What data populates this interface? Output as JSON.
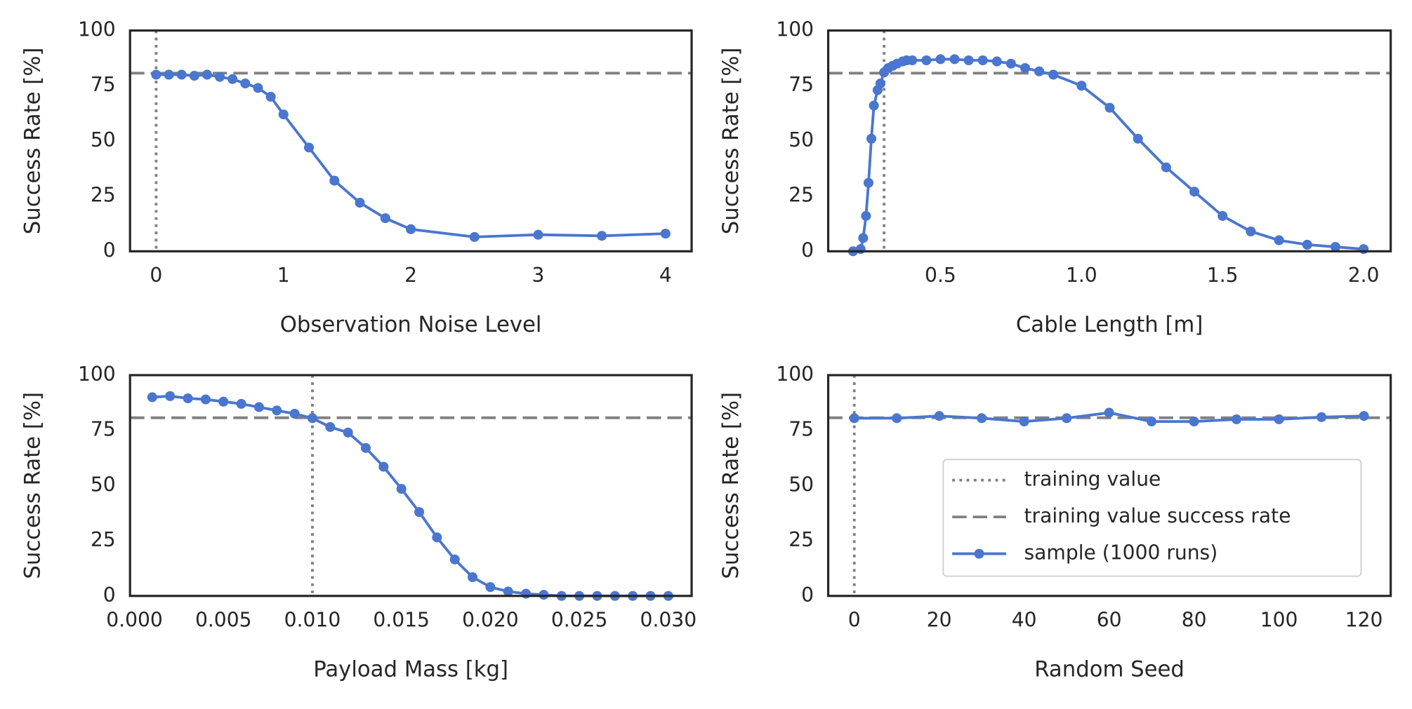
{
  "chart_data": [
    {
      "type": "line",
      "xlabel": "Observation Noise Level",
      "ylabel": "Success Rate [%]",
      "xlim": [
        -0.205,
        4.205
      ],
      "ylim": [
        0,
        100
      ],
      "xticks": [
        0,
        1,
        2,
        3,
        4
      ],
      "yticks": [
        0,
        25,
        50,
        75,
        100
      ],
      "x": [
        0,
        0.1,
        0.2,
        0.3,
        0.4,
        0.5,
        0.6,
        0.7,
        0.8,
        0.9,
        1.0,
        1.2,
        1.4,
        1.6,
        1.8,
        2.0,
        2.5,
        3.0,
        3.5,
        4.0
      ],
      "series": [
        {
          "color": "#4a76cf",
          "values": [
            80,
            80,
            80,
            79.5,
            80,
            79,
            78,
            76,
            74,
            70,
            62,
            47,
            32,
            22,
            15,
            10,
            6.5,
            7.5,
            7,
            8
          ]
        }
      ],
      "training_value": 0,
      "training_success_rate": 80.7,
      "reference_color": "#808080"
    },
    {
      "type": "line",
      "xlabel": "Cable Length [m]",
      "ylabel": "Success Rate [%]",
      "xlim": [
        0.102,
        2.096
      ],
      "ylim": [
        0,
        100
      ],
      "xticks": [
        {
          "value": 0.5,
          "label": "0.5"
        },
        {
          "value": 1,
          "label": "1.0"
        },
        {
          "value": 1.5,
          "label": "1.5"
        },
        {
          "value": 2,
          "label": "2.0"
        }
      ],
      "yticks": [
        0,
        25,
        50,
        75,
        100
      ],
      "x": [
        0.19,
        0.217,
        0.226,
        0.236,
        0.245,
        0.255,
        0.264,
        0.277,
        0.287,
        0.3,
        0.315,
        0.33,
        0.346,
        0.366,
        0.38,
        0.4,
        0.45,
        0.5,
        0.55,
        0.6,
        0.65,
        0.7,
        0.75,
        0.8,
        0.85,
        0.9,
        1.0,
        1.1,
        1.2,
        1.3,
        1.4,
        1.5,
        1.6,
        1.7,
        1.8,
        1.9,
        2.0
      ],
      "series": [
        {
          "color": "#4a76cf",
          "values": [
            0,
            1,
            6,
            16,
            31,
            51,
            66,
            73,
            76,
            81,
            83,
            84,
            85,
            86,
            86.5,
            86.5,
            86.5,
            87,
            87,
            86.5,
            86.5,
            86,
            85,
            83,
            81.5,
            80,
            75,
            65,
            51,
            38,
            27,
            16,
            9,
            5,
            3,
            2,
            1
          ]
        }
      ],
      "training_value": 0.3,
      "training_success_rate": 80.7,
      "reference_color": "#808080"
    },
    {
      "type": "line",
      "xlabel": "Payload Mass [kg]",
      "ylabel": "Success Rate [%]",
      "xlim": [
        -0.00025,
        0.03131
      ],
      "ylim": [
        0,
        100
      ],
      "xticks": [
        {
          "value": 0,
          "label": "0.000"
        },
        {
          "value": 0.005,
          "label": "0.005"
        },
        {
          "value": 0.01,
          "label": "0.010"
        },
        {
          "value": 0.015,
          "label": "0.015"
        },
        {
          "value": 0.02,
          "label": "0.020"
        },
        {
          "value": 0.025,
          "label": "0.025"
        },
        {
          "value": 0.03,
          "label": "0.030"
        }
      ],
      "yticks": [
        0,
        25,
        50,
        75,
        100
      ],
      "x": [
        0.001,
        0.002,
        0.003,
        0.004,
        0.005,
        0.006,
        0.007,
        0.008,
        0.009,
        0.01,
        0.011,
        0.012,
        0.013,
        0.014,
        0.015,
        0.016,
        0.017,
        0.018,
        0.019,
        0.02,
        0.021,
        0.022,
        0.023,
        0.024,
        0.025,
        0.026,
        0.027,
        0.028,
        0.029,
        0.03
      ],
      "series": [
        {
          "color": "#4a76cf",
          "values": [
            90,
            90.5,
            89.5,
            89,
            88,
            87,
            85.5,
            84,
            82.5,
            80.5,
            76.5,
            74,
            67,
            58.5,
            48.5,
            38,
            26.5,
            16.5,
            8.5,
            4,
            2,
            1,
            0.5,
            0,
            0,
            0,
            0,
            0,
            0,
            0
          ]
        }
      ],
      "training_value": 0.01,
      "training_success_rate": 80.7,
      "reference_color": "#808080"
    },
    {
      "type": "line",
      "xlabel": "Random Seed",
      "ylabel": "Success Rate [%]",
      "xlim": [
        -6.14,
        126.3
      ],
      "ylim": [
        0,
        100
      ],
      "xticks": [
        0,
        20,
        40,
        60,
        80,
        100,
        120
      ],
      "yticks": [
        0,
        25,
        50,
        75,
        100
      ],
      "x": [
        0,
        10,
        20,
        30,
        40,
        50,
        60,
        70,
        80,
        90,
        100,
        110,
        120
      ],
      "series": [
        {
          "name": "sample (1000 runs)",
          "color": "#4a76cf",
          "values": [
            80.5,
            80.5,
            81.5,
            80.5,
            79,
            80.5,
            83,
            79,
            79,
            80,
            80,
            81,
            81.5
          ]
        }
      ],
      "training_value": 0,
      "training_success_rate": 80.7,
      "reference_color": "#808080",
      "legend": {
        "loc": "lower right",
        "training_value_label": "training value",
        "training_success_rate_label": "training value success rate"
      }
    }
  ]
}
